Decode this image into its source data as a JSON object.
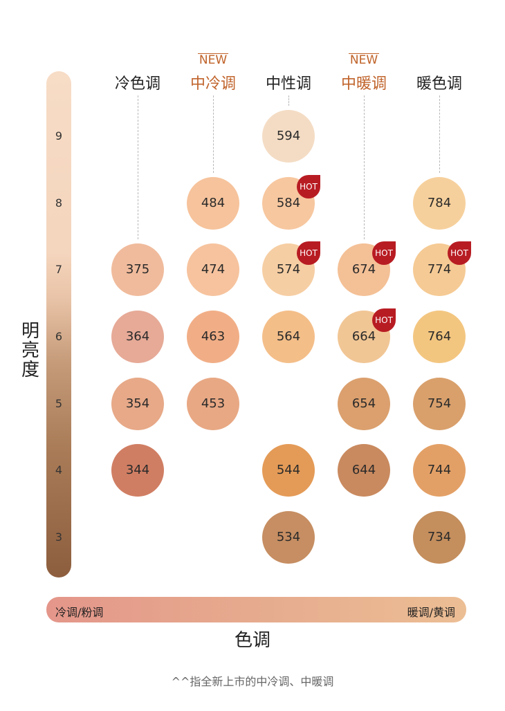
{
  "axis": {
    "brightness_label": "明亮度",
    "tone_label": "色调",
    "tone_left": "冷调/粉调",
    "tone_right": "暖调/黄调"
  },
  "levels": [
    "9",
    "8",
    "7",
    "6",
    "5",
    "4",
    "3"
  ],
  "columns": [
    {
      "label": "冷色调",
      "new": false,
      "new_label": ""
    },
    {
      "label": "中冷调",
      "new": true,
      "new_label": "NEW"
    },
    {
      "label": "中性调",
      "new": false,
      "new_label": ""
    },
    {
      "label": "中暖调",
      "new": true,
      "new_label": "NEW"
    },
    {
      "label": "暖色调",
      "new": false,
      "new_label": ""
    }
  ],
  "shades": [
    {
      "code": "594",
      "column": 2,
      "level": "9",
      "color": "#f4dcc4",
      "hot": false
    },
    {
      "code": "484",
      "column": 1,
      "level": "8",
      "color": "#f6c39c",
      "hot": false
    },
    {
      "code": "584",
      "column": 2,
      "level": "8",
      "color": "#f7c79f",
      "hot": true
    },
    {
      "code": "784",
      "column": 4,
      "level": "8",
      "color": "#f6d09c",
      "hot": false
    },
    {
      "code": "375",
      "column": 0,
      "level": "7",
      "color": "#f0bb9c",
      "hot": false
    },
    {
      "code": "474",
      "column": 1,
      "level": "7",
      "color": "#f6c39e",
      "hot": false
    },
    {
      "code": "574",
      "column": 2,
      "level": "7",
      "color": "#f6cea3",
      "hot": true
    },
    {
      "code": "674",
      "column": 3,
      "level": "7",
      "color": "#f4c096",
      "hot": true
    },
    {
      "code": "774",
      "column": 4,
      "level": "7",
      "color": "#f5ca94",
      "hot": true
    },
    {
      "code": "364",
      "column": 0,
      "level": "6",
      "color": "#e6aa97",
      "hot": false
    },
    {
      "code": "463",
      "column": 1,
      "level": "6",
      "color": "#f1ae86",
      "hot": false
    },
    {
      "code": "564",
      "column": 2,
      "level": "6",
      "color": "#f4be89",
      "hot": false
    },
    {
      "code": "664",
      "column": 3,
      "level": "6",
      "color": "#f1c695",
      "hot": true
    },
    {
      "code": "764",
      "column": 4,
      "level": "6",
      "color": "#f3c680",
      "hot": false
    },
    {
      "code": "354",
      "column": 0,
      "level": "5",
      "color": "#e7a988",
      "hot": false
    },
    {
      "code": "453",
      "column": 1,
      "level": "5",
      "color": "#e8a884",
      "hot": false
    },
    {
      "code": "654",
      "column": 3,
      "level": "5",
      "color": "#dba06e",
      "hot": false
    },
    {
      "code": "754",
      "column": 4,
      "level": "5",
      "color": "#d9a06c",
      "hot": false
    },
    {
      "code": "344",
      "column": 0,
      "level": "4",
      "color": "#d07e63",
      "hot": false
    },
    {
      "code": "544",
      "column": 2,
      "level": "4",
      "color": "#e49b57",
      "hot": false
    },
    {
      "code": "644",
      "column": 3,
      "level": "4",
      "color": "#c98a5f",
      "hot": false
    },
    {
      "code": "744",
      "column": 4,
      "level": "4",
      "color": "#e3a066",
      "hot": false
    },
    {
      "code": "534",
      "column": 2,
      "level": "3",
      "color": "#c68e62",
      "hot": false
    },
    {
      "code": "734",
      "column": 4,
      "level": "3",
      "color": "#c48e5d",
      "hot": false
    }
  ],
  "hot_label": "HOT",
  "footnote": "^^指全新上市的中冷调、中暖调"
}
